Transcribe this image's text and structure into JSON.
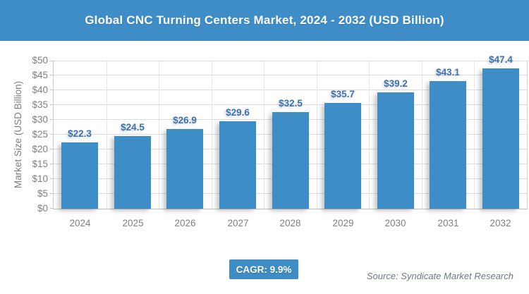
{
  "header": {
    "title": "Global CNC Turning Centers Market, 2024 - 2032 (USD Billion)"
  },
  "chart_data": {
    "type": "bar",
    "title": "Global CNC Turning Centers Market, 2024 - 2032 (USD Billion)",
    "categories": [
      "2024",
      "2025",
      "2026",
      "2027",
      "2028",
      "2029",
      "2030",
      "2031",
      "2032"
    ],
    "values": [
      22.3,
      24.5,
      26.9,
      29.6,
      32.5,
      35.7,
      39.2,
      43.1,
      47.4
    ],
    "data_labels": [
      "$22.3",
      "$24.5",
      "$26.9",
      "$29.6",
      "$32.5",
      "$35.7",
      "$39.2",
      "$43.1",
      "$47.4"
    ],
    "xlabel": "",
    "ylabel": "Market Size (USD Billion)",
    "ylim": [
      0,
      50
    ],
    "ytick_step": 5,
    "ytick_labels": [
      "$0",
      "$5",
      "$10",
      "$15",
      "$20",
      "$25",
      "$30",
      "$35",
      "$40",
      "$45",
      "$50"
    ],
    "grid": true,
    "legend": "none"
  },
  "footer": {
    "cagr_label": "CAGR: 9.9%",
    "source": "Source: Syndicate Market Research"
  },
  "colors": {
    "header_bg": "#3E8DC6",
    "bar_fill": "#3E8DC6",
    "data_label_text": "#3C73AE",
    "axis_text": "#7F7F7F",
    "gridline": "#DCDCDC",
    "badge_bg": "#3E8DC6",
    "badge_text": "#FFFFFF",
    "source_text": "#6E7B80"
  }
}
